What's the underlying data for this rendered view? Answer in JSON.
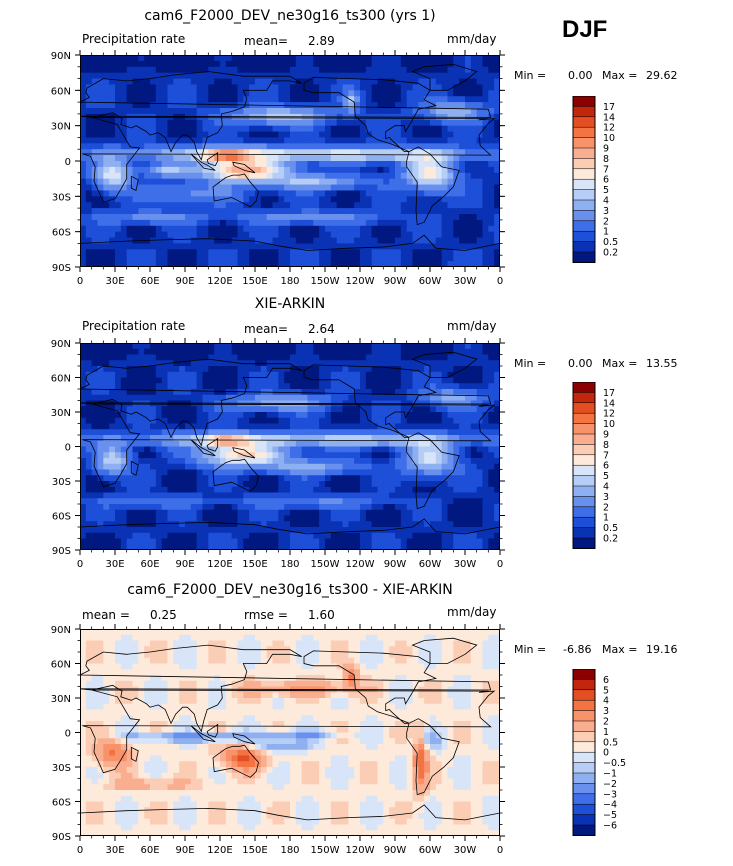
{
  "season": "DJF",
  "lon_ticks": [
    "0",
    "30E",
    "60E",
    "90E",
    "120E",
    "150E",
    "180",
    "150W",
    "120W",
    "90W",
    "60W",
    "30W",
    "0"
  ],
  "lat_ticks": [
    "90N",
    "60N",
    "30N",
    "0",
    "30S",
    "60S",
    "90S"
  ],
  "panels": [
    {
      "title": "cam6_F2000_DEV_ne30g16_ts300 (yrs 1)",
      "left_label": "Precipitation rate",
      "mid_label": "mean=",
      "mid_value": "2.89",
      "right_label": "mm/day",
      "min_label": "Min =",
      "min_value": "0.00",
      "max_label": "Max =",
      "max_value": "29.62",
      "levels": [
        "17",
        "14",
        "12",
        "10",
        "9",
        "8",
        "7",
        "6",
        "5",
        "4",
        "3",
        "2",
        "1",
        "0.5",
        "0.2"
      ],
      "colors": [
        "#8b0000",
        "#c2260c",
        "#e34e22",
        "#f37342",
        "#f7926a",
        "#faae90",
        "#fccdb5",
        "#fdeadb",
        "#d8e4f8",
        "#b6cdf6",
        "#8fb0f0",
        "#6890ec",
        "#3e6ee8",
        "#1d4fd8",
        "#0a32b4",
        "#001880"
      ]
    },
    {
      "title": "XIE-ARKIN",
      "left_label": "Precipitation rate",
      "mid_label": "mean=",
      "mid_value": "2.64",
      "right_label": "mm/day",
      "min_label": "Min =",
      "min_value": "0.00",
      "max_label": "Max =",
      "max_value": "13.55",
      "levels": [
        "17",
        "14",
        "12",
        "10",
        "9",
        "8",
        "7",
        "6",
        "5",
        "4",
        "3",
        "2",
        "1",
        "0.5",
        "0.2"
      ],
      "colors": [
        "#8b0000",
        "#c2260c",
        "#e34e22",
        "#f37342",
        "#f7926a",
        "#faae90",
        "#fccdb5",
        "#fdeadb",
        "#d8e4f8",
        "#b6cdf6",
        "#8fb0f0",
        "#6890ec",
        "#3e6ee8",
        "#1d4fd8",
        "#0a32b4",
        "#001880"
      ]
    },
    {
      "title": "cam6_F2000_DEV_ne30g16_ts300 - XIE-ARKIN",
      "left_label": "mean =",
      "left_value": "0.25",
      "mid_label": "rmse =",
      "mid_value": "1.60",
      "right_label": "mm/day",
      "min_label": "Min =",
      "min_value": "-6.86",
      "max_label": "Max =",
      "max_value": "19.16",
      "levels": [
        "6",
        "5",
        "4",
        "3",
        "2",
        "1",
        "0.5",
        "0",
        "−0.5",
        "−1",
        "−2",
        "−3",
        "−4",
        "−5",
        "−6"
      ],
      "colors": [
        "#8b0000",
        "#c2260c",
        "#e34e22",
        "#f37342",
        "#f7926a",
        "#faae90",
        "#fccdb5",
        "#fdeadb",
        "#d8e4f8",
        "#b6cdf6",
        "#8fb0f0",
        "#6890ec",
        "#3e6ee8",
        "#1d4fd8",
        "#0a32b4",
        "#001880"
      ]
    }
  ],
  "chart_data": [
    {
      "type": "heatmap",
      "title": "cam6_F2000_DEV_ne30g16_ts300 (yrs 1)",
      "variable": "Precipitation rate",
      "units": "mm/day",
      "mean": 2.89,
      "min": 0.0,
      "max": 29.62,
      "xlim": [
        0,
        360
      ],
      "ylim": [
        -90,
        90
      ],
      "contour_levels": [
        0.2,
        0.5,
        1,
        2,
        3,
        4,
        5,
        6,
        7,
        8,
        9,
        10,
        12,
        14,
        17
      ]
    },
    {
      "type": "heatmap",
      "title": "XIE-ARKIN",
      "variable": "Precipitation rate",
      "units": "mm/day",
      "mean": 2.64,
      "min": 0.0,
      "max": 13.55,
      "xlim": [
        0,
        360
      ],
      "ylim": [
        -90,
        90
      ],
      "contour_levels": [
        0.2,
        0.5,
        1,
        2,
        3,
        4,
        5,
        6,
        7,
        8,
        9,
        10,
        12,
        14,
        17
      ]
    },
    {
      "type": "heatmap",
      "title": "cam6_F2000_DEV_ne30g16_ts300 - XIE-ARKIN",
      "units": "mm/day",
      "mean": 0.25,
      "rmse": 1.6,
      "min": -6.86,
      "max": 19.16,
      "xlim": [
        0,
        360
      ],
      "ylim": [
        -90,
        90
      ],
      "contour_levels": [
        -6,
        -5,
        -4,
        -3,
        -2,
        -1,
        -0.5,
        0,
        0.5,
        1,
        2,
        3,
        4,
        5,
        6
      ]
    }
  ]
}
